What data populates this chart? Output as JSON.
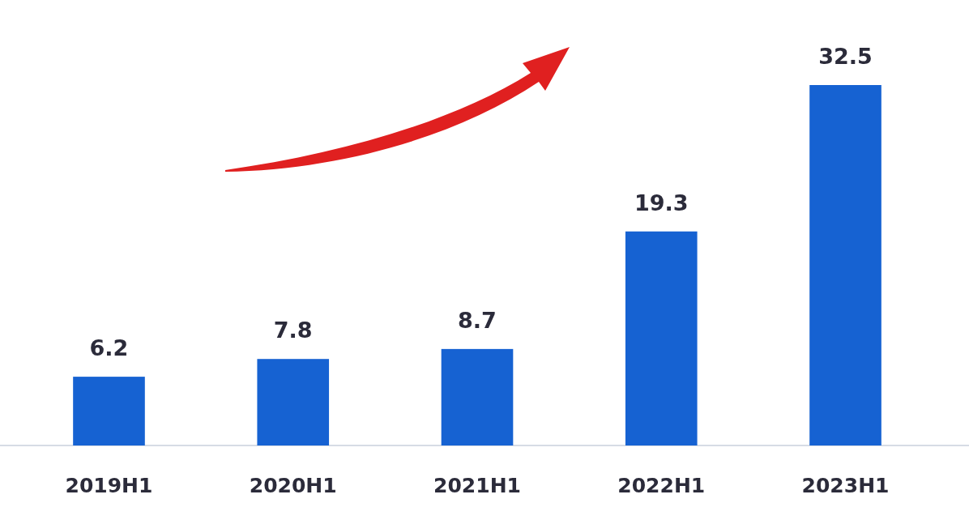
{
  "chart_data": {
    "type": "bar",
    "categories": [
      "2019H1",
      "2020H1",
      "2021H1",
      "2022H1",
      "2023H1"
    ],
    "values": [
      6.2,
      7.8,
      8.7,
      19.3,
      32.5
    ],
    "color": "#1662d2",
    "data_labels": true
  }
}
